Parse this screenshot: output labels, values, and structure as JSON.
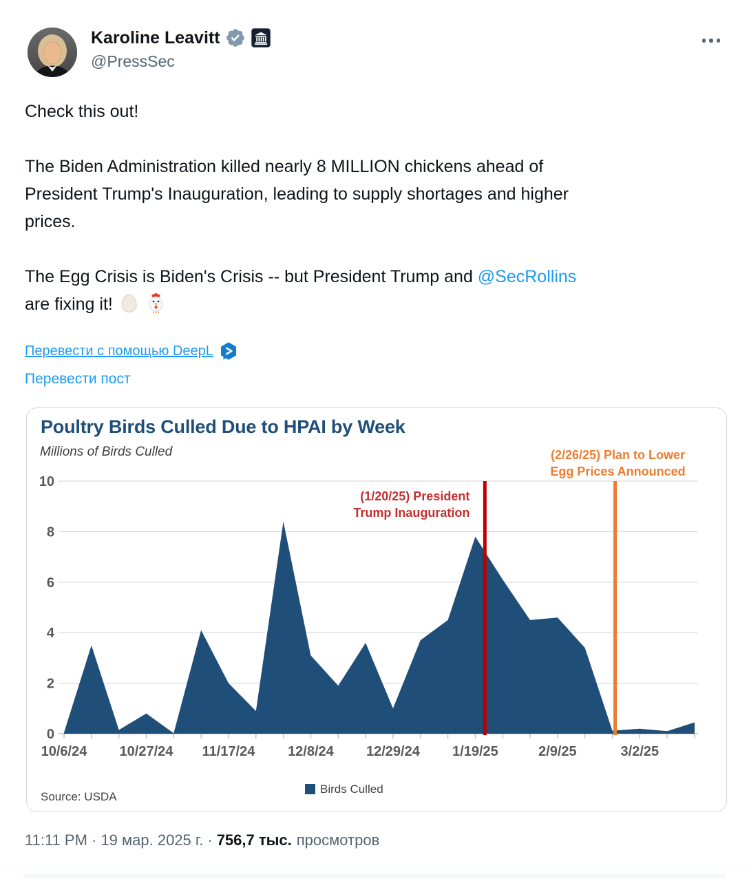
{
  "tweet": {
    "author": {
      "name": "Karoline Leavitt",
      "handle": "@PressSec"
    },
    "badges": {
      "verified": "gray-verified-checkmark",
      "affiliate": "white-house-square-badge"
    },
    "body": {
      "p1": "Check this out!",
      "p2_lines": [
        "The Biden Administration killed nearly 8 MILLION chickens ahead of",
        "President Trump's Inauguration, leading to supply shortages and higher",
        "prices."
      ],
      "p3_line1_before": "The Egg Crisis is Biden's Crisis -- but President Trump and ",
      "mention": "@SecRollins",
      "p3_line2": "are fixing it!",
      "emojis": [
        "egg",
        "rooster"
      ]
    },
    "translate_deepl": "Перевести с помощью DeepL",
    "translate_post": "Перевести пост",
    "footer": {
      "datetime": "11:11 PM · 19 мар. 2025 г.",
      "separator": "·",
      "views_count": "756,7 тыс.",
      "views_label": "просмотров"
    }
  },
  "chart_data": {
    "type": "area",
    "title": "Poultry Birds Culled Due to HPAI by Week",
    "ylabel": "Millions of Birds Culled",
    "source": "Source: USDA",
    "legend": [
      {
        "label": "Birds Culled",
        "color": "#1F4E79"
      }
    ],
    "legend_position": "bottom-center",
    "grid": true,
    "ylim": [
      0,
      10
    ],
    "yticks": [
      0,
      2,
      4,
      6,
      8,
      10
    ],
    "x_tick_every": 3,
    "x_tick_labels": [
      "10/6/24",
      "10/27/24",
      "11/17/24",
      "12/8/24",
      "12/29/24",
      "1/19/25",
      "2/9/25",
      "3/2/25"
    ],
    "x": [
      "10/6/24",
      "10/13/24",
      "10/20/24",
      "10/27/24",
      "11/3/24",
      "11/10/24",
      "11/17/24",
      "11/24/24",
      "12/1/24",
      "12/8/24",
      "12/15/24",
      "12/22/24",
      "12/29/24",
      "1/5/25",
      "1/12/25",
      "1/19/25",
      "1/26/25",
      "2/2/25",
      "2/9/25",
      "2/16/25",
      "2/23/25",
      "3/2/25",
      "3/9/25",
      "3/16/25"
    ],
    "series": [
      {
        "name": "Birds Culled",
        "values": [
          0.05,
          3.5,
          0.15,
          0.8,
          0.02,
          4.1,
          2.0,
          0.9,
          8.4,
          3.1,
          1.9,
          3.6,
          1.0,
          3.7,
          4.5,
          7.8,
          6.1,
          4.5,
          4.6,
          3.4,
          0.12,
          0.2,
          0.1,
          0.45
        ]
      }
    ],
    "annotations": [
      {
        "x_index": 15.35,
        "lines": [
          "(1/20/25)  President",
          "Trump Inauguration"
        ],
        "color": "#C00000",
        "text_color": "#C52F2F",
        "label_side": "left"
      },
      {
        "x_index": 20.1,
        "lines": [
          "(2/26/25)  Plan to Lower",
          "Egg Prices Announced"
        ],
        "color": "#ED7D31",
        "text_color": "#ED7D31",
        "label_side": "above"
      }
    ],
    "colors": {
      "area": "#1F4E79",
      "grid": "#D9D9D9",
      "axis": "#BFBFBF",
      "tick_text": "#595959",
      "title": "#1F4E79",
      "subtitle": "#404040"
    }
  }
}
